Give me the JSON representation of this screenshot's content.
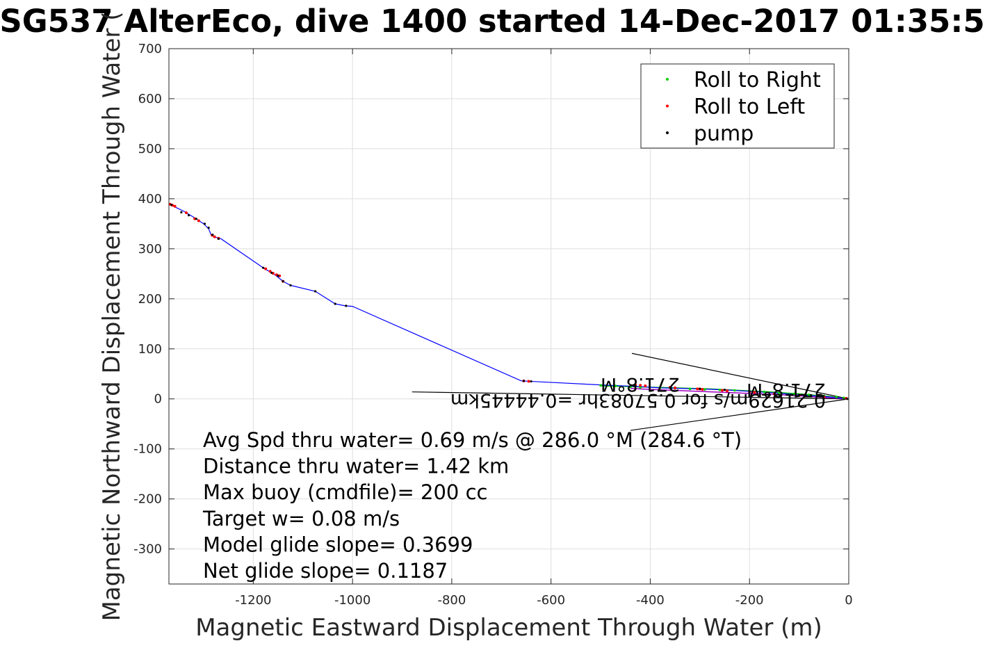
{
  "chart_data": {
    "type": "line",
    "title": "SG537 AlterEco, dive 1400 started 14-Dec-2017 01:35:5",
    "xlabel": "Magnetic Eastward Displacement Through Water (m)",
    "ylabel": "Magnetic Northward Displacement Through Water (",
    "xlim": [
      -1370,
      0
    ],
    "ylim": [
      -370,
      700
    ],
    "x_ticks": [
      "-1200",
      "-1000",
      "-800",
      "-600",
      "-400",
      "-200",
      "0"
    ],
    "x_tick_values": [
      -1200,
      -1000,
      -800,
      -600,
      -400,
      -200,
      0
    ],
    "y_ticks": [
      "700",
      "600",
      "500",
      "400",
      "300",
      "200",
      "100",
      "0",
      "-100",
      "-200",
      "-300"
    ],
    "y_tick_values": [
      700,
      600,
      500,
      400,
      300,
      200,
      100,
      0,
      -100,
      -200,
      -300
    ],
    "grid": true,
    "legend_position": "top-right",
    "legend": [
      {
        "name": "Roll to Right",
        "color": "#00d000"
      },
      {
        "name": "Roll to Left",
        "color": "#ff0000"
      },
      {
        "name": "pump",
        "color": "#000000"
      }
    ],
    "track": {
      "color": "#0000ff",
      "x": [
        -1370,
        -1365,
        -1340,
        -1320,
        -1300,
        -1290,
        -1285,
        -1275,
        -1265,
        -1180,
        -1165,
        -1155,
        -1140,
        -1125,
        -1075,
        -1035,
        -1015,
        -1000,
        -660,
        -640,
        -500,
        -430,
        -380,
        -300,
        -250,
        -200,
        -150,
        -100,
        -50,
        0
      ],
      "y": [
        390,
        387,
        375,
        363,
        350,
        340,
        328,
        323,
        320,
        262,
        253,
        247,
        235,
        227,
        215,
        190,
        186,
        185,
        36,
        35,
        28,
        25,
        22,
        20,
        18,
        15,
        12,
        8,
        5,
        0
      ]
    },
    "roll_right": {
      "x": [
        -500,
        -470,
        -440,
        -420,
        -380,
        -350,
        -320,
        -290,
        -260,
        -230,
        -200,
        -170,
        -140,
        -110,
        -80,
        -50,
        -25,
        -10
      ],
      "y": [
        27,
        26,
        24,
        23,
        22,
        21,
        20,
        19,
        18,
        17,
        15,
        14,
        12,
        10,
        8,
        6,
        4,
        2
      ]
    },
    "roll_left": {
      "x": [
        -1368,
        -1363,
        -1358,
        -1335,
        -1318,
        -1310,
        -1283,
        -1278,
        -1270,
        -1175,
        -1166,
        -1160,
        -1153,
        -1147,
        -1140,
        -655,
        -645,
        -430,
        -420,
        -410,
        -360,
        -350,
        -305,
        -300,
        -295,
        -255,
        -245,
        -200,
        -190,
        -150,
        -100,
        -50,
        -5
      ],
      "y": [
        389,
        387,
        385,
        372,
        360,
        356,
        327,
        324,
        321,
        260,
        255,
        251,
        248,
        246,
        235,
        36,
        35,
        28,
        27,
        26,
        23,
        22,
        20,
        20,
        19,
        17,
        16,
        14,
        13,
        10,
        7,
        4,
        1
      ]
    },
    "pump": {
      "x": [
        -1365,
        -1345,
        -1330,
        -1315,
        -1298,
        -1290,
        -1282,
        -1270,
        -1180,
        -1163,
        -1150,
        -1140,
        -1125,
        -1075,
        -1035,
        -1013,
        -655,
        -640,
        -430,
        -360,
        -300,
        -250,
        -200,
        -3
      ],
      "y": [
        388,
        373,
        367,
        360,
        350,
        342,
        328,
        320,
        262,
        252,
        246,
        235,
        227,
        215,
        190,
        186,
        36,
        35,
        26,
        22,
        20,
        18,
        15,
        0
      ]
    },
    "purple_track": {
      "x": [
        -440,
        -400,
        -350,
        -300,
        -250,
        -200,
        -150,
        -100,
        -50,
        0
      ],
      "y": [
        21,
        19,
        17,
        15,
        13,
        11,
        9,
        6,
        3,
        0
      ]
    },
    "green_track": {
      "x": [
        -500,
        -420,
        -350,
        -280,
        -220,
        -160,
        -100,
        -40,
        0
      ],
      "y": [
        26,
        24,
        22,
        20,
        17,
        14,
        10,
        5,
        0
      ]
    },
    "thin_lines": [
      {
        "x": [
          -437,
          0
        ],
        "y": [
          91,
          0
        ]
      },
      {
        "x": [
          -440,
          0
        ],
        "y": [
          -63,
          0
        ]
      },
      {
        "x": [
          -880,
          0
        ],
        "y": [
          14,
          0
        ]
      }
    ],
    "annotations": [
      "Avg Spd thru water=  0.69 m/s @ 286.0 °M (284.6 °T)",
      "Distance thru water=  1.42 km",
      "Max buoy (cmdfile)= 200 cc",
      "Target w= 0.08 m/s",
      "Model glide slope= 0.3699",
      "Net glide slope= 0.1187"
    ],
    "flipped_labels": [
      "0.21629m/s for 0.57083hr =0.44445km",
      "271.8°M",
      "271.8°M"
    ]
  }
}
